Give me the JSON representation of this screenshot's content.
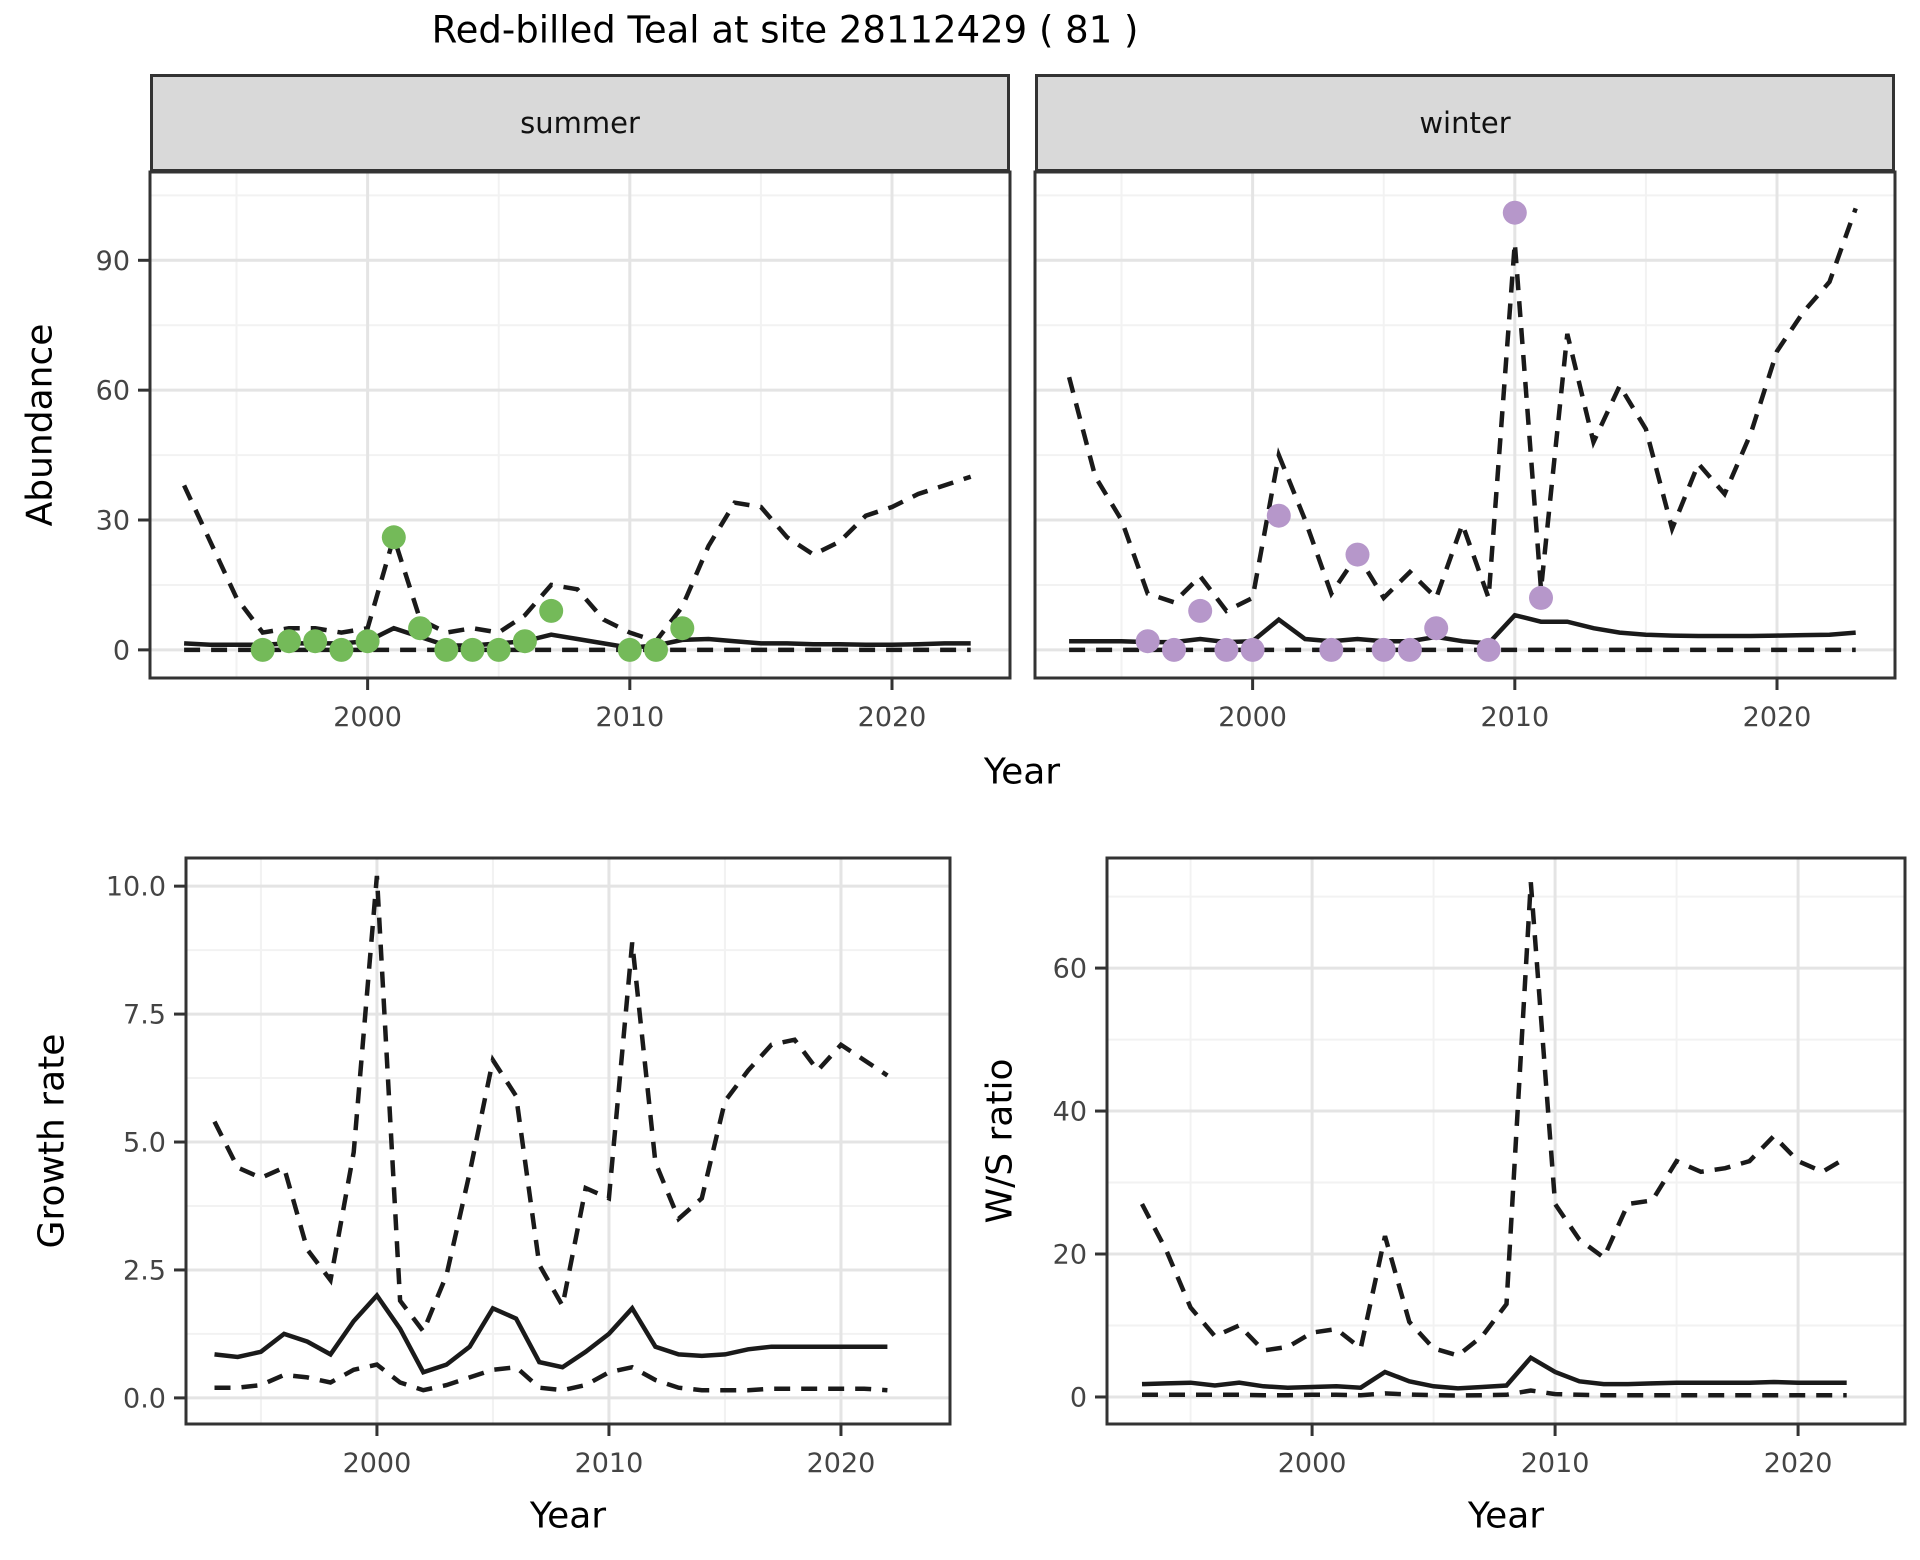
{
  "title": "Red-billed Teal at site 28112429 ( 81 )",
  "labels": {
    "x_axis": "Year",
    "abundance_axis": "Abundance",
    "growth_axis": "Growth rate",
    "ws_axis": "W/S ratio"
  },
  "colors": {
    "summer_point": "#74ba59",
    "winter_point": "#b697ca",
    "line": "#1a1a1a",
    "strip_bg": "#d9d9d9",
    "grid_major": "#e4e4e4",
    "grid_minor": "#f2f2f2",
    "panel_border": "#333333",
    "tick_text": "#444444"
  },
  "chart_data": [
    {
      "type": "line",
      "facet": "summer",
      "xlabel": "Year",
      "ylabel": "Abundance",
      "xlim": [
        1991.7,
        2024.5
      ],
      "ylim": [
        -6.5,
        110.4
      ],
      "x": [
        1993,
        1994,
        1995,
        1996,
        1997,
        1998,
        1999,
        2000,
        2001,
        2002,
        2003,
        2004,
        2005,
        2006,
        2007,
        2008,
        2009,
        2010,
        2011,
        2012,
        2013,
        2014,
        2015,
        2016,
        2017,
        2018,
        2019,
        2020,
        2021,
        2022,
        2023
      ],
      "x_ticks": [
        2000,
        2010,
        2020
      ],
      "x_tick_labels": [
        "2000",
        "2010",
        "2020"
      ],
      "x_minor": [
        1995,
        2005,
        2015
      ],
      "y_ticks": [
        0,
        30,
        60,
        90
      ],
      "y_tick_labels": [
        "0",
        "30",
        "60",
        "90"
      ],
      "y_minor": [
        15,
        45,
        75,
        105
      ],
      "series": [
        {
          "name": "upper_95ci",
          "style": "dashed",
          "values": [
            38,
            25,
            12,
            4,
            5,
            5,
            4,
            5,
            26,
            7,
            4,
            5,
            4,
            8,
            15,
            14,
            7,
            4,
            2,
            10,
            24,
            34,
            33,
            26,
            22,
            25,
            31,
            33,
            36,
            38,
            40
          ]
        },
        {
          "name": "median",
          "style": "solid",
          "values": [
            1.5,
            1.2,
            1.2,
            1.2,
            1.5,
            1.5,
            1.5,
            2,
            5,
            3,
            1,
            1,
            1.5,
            2,
            3.5,
            2.5,
            1.5,
            0.5,
            1,
            2.3,
            2.5,
            2,
            1.5,
            1.5,
            1.3,
            1.3,
            1.2,
            1.2,
            1.3,
            1.5,
            1.5
          ]
        },
        {
          "name": "lower_95ci",
          "style": "dashed",
          "values": [
            0,
            0,
            0,
            0,
            0,
            0,
            0,
            0,
            0,
            0,
            0,
            0,
            0,
            0,
            0,
            0,
            0,
            0,
            0,
            0,
            0,
            0,
            0,
            0,
            0,
            0,
            0,
            0,
            0,
            0,
            0
          ]
        }
      ],
      "points": {
        "name": "observed_counts",
        "color": "#74ba59",
        "data": [
          [
            1996,
            0
          ],
          [
            1997,
            2
          ],
          [
            1998,
            2
          ],
          [
            1999,
            0
          ],
          [
            2000,
            2
          ],
          [
            2001,
            26
          ],
          [
            2002,
            5
          ],
          [
            2003,
            0
          ],
          [
            2004,
            0
          ],
          [
            2005,
            0
          ],
          [
            2006,
            2
          ],
          [
            2007,
            9
          ],
          [
            2010,
            0
          ],
          [
            2011,
            0
          ],
          [
            2012,
            5
          ]
        ]
      }
    },
    {
      "type": "line",
      "facet": "winter",
      "xlabel": "Year",
      "ylabel": "Abundance",
      "xlim": [
        1991.7,
        2024.5
      ],
      "ylim": [
        -6.5,
        110.4
      ],
      "x": [
        1993,
        1994,
        1995,
        1996,
        1997,
        1998,
        1999,
        2000,
        2001,
        2002,
        2003,
        2004,
        2005,
        2006,
        2007,
        2008,
        2009,
        2010,
        2011,
        2012,
        2013,
        2014,
        2015,
        2016,
        2017,
        2018,
        2019,
        2020,
        2021,
        2022,
        2023
      ],
      "x_ticks": [
        2000,
        2010,
        2020
      ],
      "x_tick_labels": [
        "2000",
        "2010",
        "2020"
      ],
      "x_minor": [
        1995,
        2005,
        2015
      ],
      "y_ticks": [
        0,
        30,
        60,
        90
      ],
      "y_tick_labels": [
        "0",
        "30",
        "60",
        "90"
      ],
      "y_minor": [
        15,
        45,
        75,
        105
      ],
      "series": [
        {
          "name": "upper_95ci",
          "style": "dashed",
          "values": [
            63,
            40,
            30,
            13,
            11,
            17,
            9,
            12,
            45,
            30,
            13,
            22,
            12,
            18,
            12,
            29,
            12,
            94,
            14,
            73,
            48,
            61,
            51,
            28,
            43,
            36,
            50,
            69,
            78,
            85,
            102
          ]
        },
        {
          "name": "median",
          "style": "solid",
          "values": [
            2,
            2,
            2,
            1.8,
            1.8,
            2.5,
            1.8,
            2,
            7,
            2.5,
            2,
            2.5,
            2,
            2,
            3,
            2,
            1.5,
            8,
            6.5,
            6.5,
            5,
            4,
            3.5,
            3.3,
            3.2,
            3.2,
            3.2,
            3.3,
            3.4,
            3.5,
            4
          ]
        },
        {
          "name": "lower_95ci",
          "style": "dashed",
          "values": [
            0,
            0,
            0,
            0,
            0,
            0,
            0,
            0,
            0,
            0,
            0,
            0,
            0,
            0,
            0,
            0,
            0,
            0,
            0,
            0,
            0,
            0,
            0,
            0,
            0,
            0,
            0,
            0,
            0,
            0,
            0
          ]
        }
      ],
      "points": {
        "name": "observed_counts",
        "color": "#b697ca",
        "data": [
          [
            1996,
            2
          ],
          [
            1997,
            0
          ],
          [
            1998,
            9
          ],
          [
            1999,
            0
          ],
          [
            2000,
            0
          ],
          [
            2001,
            31
          ],
          [
            2003,
            0
          ],
          [
            2004,
            22
          ],
          [
            2005,
            0
          ],
          [
            2006,
            0
          ],
          [
            2007,
            5
          ],
          [
            2009,
            0
          ],
          [
            2010,
            101
          ],
          [
            2011,
            12
          ]
        ]
      }
    },
    {
      "type": "line",
      "facet": null,
      "xlabel": "Year",
      "ylabel": "Growth rate",
      "xlim": [
        1991.77,
        2024.7
      ],
      "ylim": [
        -0.51,
        10.55
      ],
      "x": [
        1993,
        1994,
        1995,
        1996,
        1997,
        1998,
        1999,
        2000,
        2001,
        2002,
        2003,
        2004,
        2005,
        2006,
        2007,
        2008,
        2009,
        2010,
        2011,
        2012,
        2013,
        2014,
        2015,
        2016,
        2017,
        2018,
        2019,
        2020,
        2021,
        2022
      ],
      "x_ticks": [
        2000,
        2010,
        2020
      ],
      "x_tick_labels": [
        "2000",
        "2010",
        "2020"
      ],
      "x_minor": [
        1995,
        2005,
        2015
      ],
      "y_ticks": [
        0,
        2.5,
        5,
        7.5,
        10
      ],
      "y_tick_labels": [
        "0.0",
        "2.5",
        "5.0",
        "7.5",
        "10.0"
      ],
      "y_minor": [
        1.25,
        3.75,
        6.25,
        8.75
      ],
      "series": [
        {
          "name": "upper_95ci",
          "style": "dashed",
          "values": [
            5.4,
            4.5,
            4.3,
            4.5,
            2.9,
            2.3,
            4.8,
            10.2,
            1.9,
            1.3,
            2.4,
            4.4,
            6.6,
            5.9,
            2.6,
            1.8,
            4.1,
            3.9,
            8.9,
            4.6,
            3.5,
            3.9,
            5.8,
            6.4,
            6.9,
            7.0,
            6.4,
            6.9,
            6.6,
            6.3
          ]
        },
        {
          "name": "median",
          "style": "solid",
          "values": [
            0.85,
            0.8,
            0.9,
            1.25,
            1.1,
            0.85,
            1.5,
            2.0,
            1.35,
            0.5,
            0.65,
            1.0,
            1.75,
            1.55,
            0.7,
            0.6,
            0.9,
            1.25,
            1.75,
            1.0,
            0.85,
            0.82,
            0.85,
            0.95,
            1.0,
            1.0,
            1.0,
            1.0,
            1.0,
            1.0
          ]
        },
        {
          "name": "lower_95ci",
          "style": "dashed",
          "values": [
            0.2,
            0.2,
            0.25,
            0.45,
            0.4,
            0.3,
            0.55,
            0.65,
            0.3,
            0.15,
            0.25,
            0.4,
            0.55,
            0.6,
            0.2,
            0.15,
            0.25,
            0.5,
            0.6,
            0.35,
            0.2,
            0.15,
            0.15,
            0.15,
            0.18,
            0.18,
            0.18,
            0.18,
            0.18,
            0.15
          ]
        }
      ],
      "points": null
    },
    {
      "type": "line",
      "facet": null,
      "xlabel": "Year",
      "ylabel": "W/S ratio",
      "xlim": [
        1991.56,
        2024.4
      ],
      "ylim": [
        -3.78,
        75.4
      ],
      "x": [
        1993,
        1994,
        1995,
        1996,
        1997,
        1998,
        1999,
        2000,
        2001,
        2002,
        2003,
        2004,
        2005,
        2006,
        2007,
        2008,
        2009,
        2010,
        2011,
        2012,
        2013,
        2014,
        2015,
        2016,
        2017,
        2018,
        2019,
        2020,
        2021,
        2022
      ],
      "x_ticks": [
        2000,
        2010,
        2020
      ],
      "x_tick_labels": [
        "2000",
        "2010",
        "2020"
      ],
      "x_minor": [
        1995,
        2005,
        2015
      ],
      "y_ticks": [
        0,
        20,
        40,
        60
      ],
      "y_tick_labels": [
        "0",
        "20",
        "40",
        "60"
      ],
      "y_minor": [
        10,
        30,
        50,
        70
      ],
      "series": [
        {
          "name": "upper_95ci",
          "style": "dashed",
          "values": [
            27,
            20.5,
            12.5,
            8.5,
            10,
            6.5,
            7,
            9,
            9.5,
            6.8,
            22.5,
            10.5,
            6.8,
            5.8,
            8.5,
            13,
            72,
            27,
            22,
            19.5,
            27,
            27.5,
            33,
            31.5,
            32,
            33,
            36.5,
            33,
            31.5,
            33.5
          ]
        },
        {
          "name": "median",
          "style": "solid",
          "values": [
            1.8,
            1.9,
            2.0,
            1.6,
            2.0,
            1.5,
            1.3,
            1.4,
            1.5,
            1.3,
            3.5,
            2.2,
            1.5,
            1.2,
            1.4,
            1.6,
            5.5,
            3.5,
            2.2,
            1.8,
            1.8,
            1.9,
            2.0,
            2.0,
            2.0,
            2.0,
            2.1,
            2.0,
            2.0,
            2.0
          ]
        },
        {
          "name": "lower_95ci",
          "style": "dashed",
          "values": [
            0.3,
            0.3,
            0.3,
            0.3,
            0.3,
            0.25,
            0.25,
            0.3,
            0.3,
            0.25,
            0.5,
            0.35,
            0.25,
            0.2,
            0.25,
            0.3,
            0.9,
            0.4,
            0.3,
            0.25,
            0.25,
            0.25,
            0.25,
            0.25,
            0.25,
            0.25,
            0.25,
            0.25,
            0.25,
            0.25
          ]
        }
      ],
      "points": null
    }
  ]
}
